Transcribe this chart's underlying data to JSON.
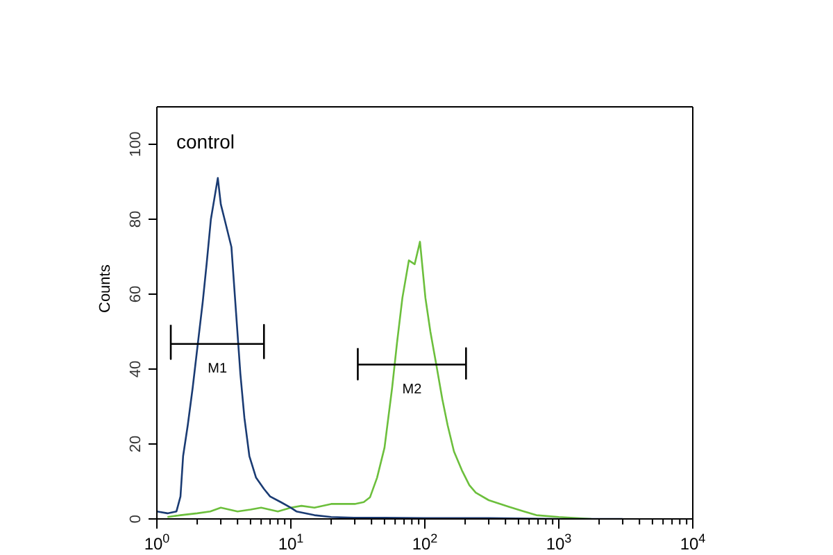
{
  "chart_data": {
    "type": "line",
    "ylabel": "Counts",
    "log": "x",
    "xlim": [
      1,
      10000
    ],
    "ylim": [
      0,
      110
    ],
    "xticks": [
      {
        "value": 1,
        "label": "10$^{0}$"
      },
      {
        "value": 2,
        "label": null
      },
      {
        "value": 3,
        "label": null
      },
      {
        "value": 4,
        "label": null
      },
      {
        "value": 5,
        "label": null
      },
      {
        "value": 6,
        "label": null
      },
      {
        "value": 7,
        "label": null
      },
      {
        "value": 8,
        "label": null
      },
      {
        "value": 9,
        "label": null
      },
      {
        "value": 10,
        "label": "10$^{1}$"
      },
      {
        "value": 20,
        "label": null
      },
      {
        "value": 30,
        "label": null
      },
      {
        "value": 40,
        "label": null
      },
      {
        "value": 50,
        "label": null
      },
      {
        "value": 60,
        "label": null
      },
      {
        "value": 70,
        "label": null
      },
      {
        "value": 80,
        "label": null
      },
      {
        "value": 90,
        "label": null
      },
      {
        "value": 100,
        "label": "10$^{2}$"
      },
      {
        "value": 200,
        "label": null
      },
      {
        "value": 300,
        "label": null
      },
      {
        "value": 400,
        "label": null
      },
      {
        "value": 500,
        "label": null
      },
      {
        "value": 600,
        "label": null
      },
      {
        "value": 700,
        "label": null
      },
      {
        "value": 800,
        "label": null
      },
      {
        "value": 900,
        "label": null
      },
      {
        "value": 1000,
        "label": "10$^{3}$"
      },
      {
        "value": 2000,
        "label": null
      },
      {
        "value": 3000,
        "label": null
      },
      {
        "value": 4000,
        "label": null
      },
      {
        "value": 5000,
        "label": null
      },
      {
        "value": 6000,
        "label": null
      },
      {
        "value": 7000,
        "label": null
      },
      {
        "value": 8000,
        "label": null
      },
      {
        "value": 9000,
        "label": null
      },
      {
        "value": 10000,
        "label": "10$^{4}$"
      }
    ],
    "yticks": [
      0,
      20,
      40,
      60,
      80,
      100
    ],
    "marker": "none",
    "line_style": "solid",
    "annotations": [
      "control",
      "M1",
      "M2"
    ],
    "series": [
      {
        "color": "#6cbf3c",
        "x": [
          1.2,
          1.5,
          2,
          2.5,
          3,
          4,
          5,
          6,
          8,
          10,
          12,
          15,
          20,
          25,
          30,
          35,
          39,
          44,
          50,
          57,
          62,
          68,
          76,
          84,
          92,
          101,
          110,
          122,
          135,
          148,
          165,
          189,
          215,
          240,
          300,
          420,
          550,
          680,
          1000,
          1750
        ],
        "values": [
          0.5,
          1,
          1.5,
          2,
          3,
          2,
          2.5,
          3,
          2,
          3,
          3.5,
          3,
          4,
          4,
          4,
          4.5,
          5.8,
          11,
          19,
          35,
          47,
          59,
          69,
          68,
          74,
          59,
          50,
          41,
          32,
          25,
          18,
          13,
          9,
          7,
          5,
          3.3,
          2,
          1,
          0.5,
          0
        ]
      },
      {
        "color": "#1a3b73",
        "x": [
          1,
          1.2,
          1.4,
          1.5,
          1.57,
          1.7,
          1.85,
          2.04,
          2.2,
          2.35,
          2.53,
          2.7,
          2.85,
          3,
          3.2,
          3.6,
          3.9,
          4.2,
          4.5,
          4.9,
          5.5,
          6.3,
          7,
          8.5,
          10,
          11,
          15,
          20,
          30,
          50,
          100,
          300,
          1000,
          3000
        ],
        "values": [
          2,
          1.5,
          2,
          6,
          16.8,
          25,
          35,
          48,
          58,
          68,
          80,
          86,
          91,
          84,
          80,
          72.6,
          55,
          38.7,
          27,
          16.8,
          11,
          8,
          6,
          4.4,
          3,
          2,
          1,
          0.5,
          0.3,
          0.3,
          0.2,
          0.2,
          0,
          0
        ]
      },
      {
        "type": "line",
        "color": "#000000",
        "x": [
          1.27,
          1.27,
          1.27,
          6.3,
          6.3,
          6.3
        ],
        "values": [
          51.8,
          42.7,
          46.7,
          46.7,
          51.8,
          42.7
        ]
      },
      {
        "type": "line",
        "color": "#000000",
        "x": [
          31.6,
          31.6,
          31.6,
          203,
          203,
          203
        ],
        "values": [
          45.6,
          37.2,
          41.2,
          41.2,
          45.6,
          37.2
        ]
      }
    ]
  }
}
